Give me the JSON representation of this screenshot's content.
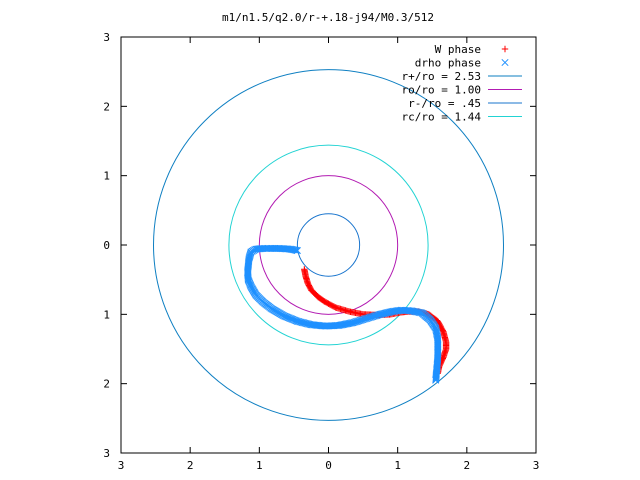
{
  "chart_data": {
    "type": "scatter",
    "title": "m1/n1.5/q2.0/r-+.18-j94/M0.3/512",
    "xlabel": "",
    "ylabel": "",
    "xlim": [
      -3,
      3
    ],
    "ylim": [
      -3,
      3
    ],
    "x_ticks": [
      -3,
      -2,
      -1,
      0,
      1,
      2,
      3
    ],
    "y_ticks": [
      -3,
      -2,
      -1,
      0,
      1,
      2,
      3
    ],
    "x_tick_labels": [
      "3",
      "2",
      "1",
      "0",
      "1",
      "2",
      "3"
    ],
    "y_tick_labels": [
      "3",
      "2",
      "1",
      "0",
      "1",
      "2",
      "3"
    ],
    "grid": false,
    "legend_position": "top-right",
    "circles": [
      {
        "label": "r+/ro = 2.53",
        "radius": 2.53,
        "color": "#0e7fc2"
      },
      {
        "label": "ro/ro = 1.00",
        "radius": 1.0,
        "color": "#b21bb2"
      },
      {
        "label": "r-/ro = .45",
        "radius": 0.45,
        "color": "#1874cd"
      },
      {
        "label": "rc/ro = 1.44",
        "radius": 1.44,
        "color": "#22d3d3"
      }
    ],
    "series": [
      {
        "name": "W phase",
        "marker": "+",
        "color": "#ff0000",
        "points": [
          [
            -0.35,
            -0.35
          ],
          [
            -0.33,
            -0.45
          ],
          [
            -0.3,
            -0.55
          ],
          [
            -0.25,
            -0.65
          ],
          [
            -0.15,
            -0.75
          ],
          [
            -0.05,
            -0.82
          ],
          [
            0.1,
            -0.9
          ],
          [
            0.3,
            -0.96
          ],
          [
            0.5,
            -1.0
          ],
          [
            0.7,
            -1.01
          ],
          [
            0.9,
            -1.0
          ],
          [
            1.05,
            -0.97
          ],
          [
            1.15,
            -0.96
          ],
          [
            1.3,
            -0.96
          ],
          [
            1.45,
            -1.0
          ],
          [
            1.58,
            -1.1
          ],
          [
            1.66,
            -1.25
          ],
          [
            1.7,
            -1.4
          ],
          [
            1.7,
            -1.5
          ],
          [
            1.66,
            -1.62
          ],
          [
            1.6,
            -1.75
          ],
          [
            1.58,
            -1.85
          ]
        ]
      },
      {
        "name": "drho phase",
        "marker": "x",
        "color": "#1e90ff",
        "points": [
          [
            -0.45,
            -0.08
          ],
          [
            -0.55,
            -0.06
          ],
          [
            -0.7,
            -0.05
          ],
          [
            -0.85,
            -0.05
          ],
          [
            -0.95,
            -0.05
          ],
          [
            -1.05,
            -0.06
          ],
          [
            -1.12,
            -0.1
          ],
          [
            -1.15,
            -0.2
          ],
          [
            -1.16,
            -0.3
          ],
          [
            -1.17,
            -0.4
          ],
          [
            -1.16,
            -0.5
          ],
          [
            -1.12,
            -0.6
          ],
          [
            -1.05,
            -0.72
          ],
          [
            -0.95,
            -0.82
          ],
          [
            -0.82,
            -0.92
          ],
          [
            -0.65,
            -1.02
          ],
          [
            -0.45,
            -1.1
          ],
          [
            -0.25,
            -1.15
          ],
          [
            -0.05,
            -1.17
          ],
          [
            0.15,
            -1.16
          ],
          [
            0.35,
            -1.12
          ],
          [
            0.55,
            -1.06
          ],
          [
            0.75,
            -1.0
          ],
          [
            0.92,
            -0.96
          ],
          [
            1.05,
            -0.94
          ],
          [
            1.2,
            -0.95
          ],
          [
            1.35,
            -0.98
          ],
          [
            1.47,
            -1.08
          ],
          [
            1.55,
            -1.2
          ],
          [
            1.58,
            -1.35
          ],
          [
            1.58,
            -1.5
          ],
          [
            1.58,
            -1.62
          ],
          [
            1.57,
            -1.74
          ],
          [
            1.56,
            -1.85
          ],
          [
            1.55,
            -1.95
          ]
        ]
      }
    ]
  }
}
